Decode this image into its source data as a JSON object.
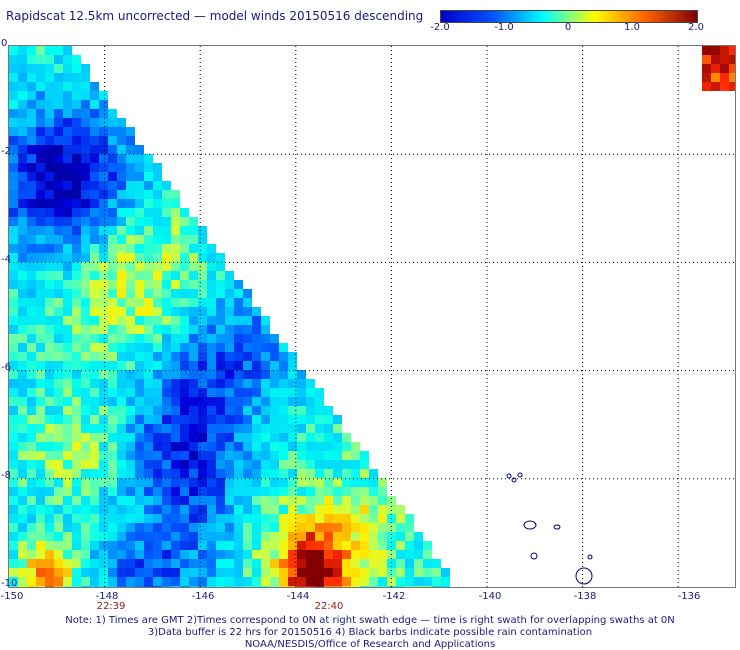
{
  "title": "Rapidscat 12.5km uncorrected — model winds 20150516 descending",
  "colorbar": {
    "labels": [
      "-2.0",
      "-1.0",
      "0",
      "1.0",
      "2.0"
    ],
    "values": [
      -2.0,
      -1.0,
      0,
      1.0,
      2.0
    ],
    "range": [
      -2.0,
      2.0
    ],
    "colors": [
      "#0000c8",
      "#0050ff",
      "#00ffff",
      "#ffff00",
      "#ff6000",
      "#800000"
    ]
  },
  "axes": {
    "x_ticks": [
      "-150",
      "-148",
      "-146",
      "-144",
      "-142",
      "-140",
      "-138",
      "-136"
    ],
    "y_ticks": [
      "0",
      "-2",
      "-4",
      "-6",
      "-8",
      "-10"
    ],
    "lon_range": [
      -150,
      -135
    ],
    "lat_range": [
      -10,
      0
    ]
  },
  "swath_times": [
    {
      "label": "22:39",
      "lon": -148
    },
    {
      "label": "22:40",
      "lon": -143.3
    }
  ],
  "notes": {
    "line1": "Note: 1) Times are GMT 2)Times correspond to 0N at right swath edge — time is right swath for overlapping swaths at 0N",
    "line2": "3)Data buffer is 22 hrs for 20150516 4) Black barbs indicate possible rain contamination",
    "line3": "NOAA/NESDIS/Office of Research and Applications"
  },
  "colors": {
    "grid": "#000000",
    "coast": "#000080",
    "text": "#1a1a80",
    "time_label": "#8b1a1a"
  }
}
